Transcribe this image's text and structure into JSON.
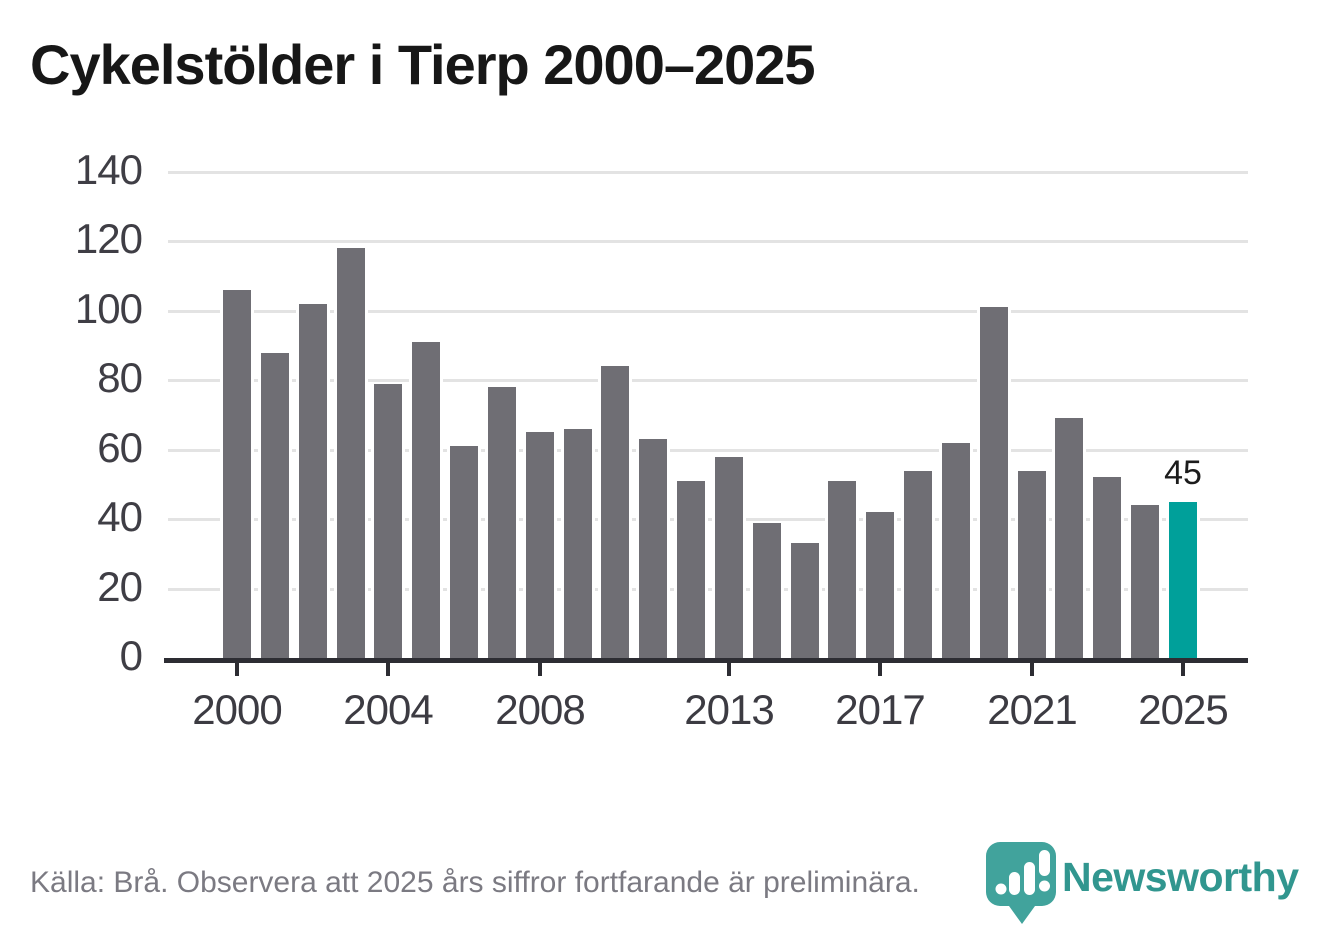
{
  "title": "Cykelstölder i Tierp 2000–2025",
  "footer": {
    "source_text": "Källa: Brå. Observera att 2025 års siffror fortfarande är preliminära.",
    "brand_name": "Newsworthy"
  },
  "colors": {
    "bar": "#6f6e74",
    "highlight_bar": "#00a09a",
    "gridline": "#e3e3e3",
    "axis": "#2d2d33",
    "brand_teal": "#41a39c",
    "brand_text_teal": "#31968f",
    "title_text": "#171717",
    "tick_text": "#3c3b42",
    "footer_text": "#7b7a82"
  },
  "chart_data": {
    "type": "bar",
    "title": "Cykelstölder i Tierp 2000–2025",
    "xlabel": "",
    "ylabel": "",
    "ylim": [
      0,
      140
    ],
    "grid": true,
    "y_ticks": [
      0,
      20,
      40,
      60,
      80,
      100,
      120,
      140
    ],
    "x_tick_years": [
      2000,
      2004,
      2008,
      2013,
      2017,
      2021,
      2025
    ],
    "categories": [
      2000,
      2001,
      2002,
      2003,
      2004,
      2005,
      2006,
      2007,
      2008,
      2009,
      2010,
      2011,
      2012,
      2013,
      2014,
      2015,
      2016,
      2017,
      2018,
      2019,
      2020,
      2021,
      2022,
      2023,
      2024,
      2025
    ],
    "values": [
      106,
      88,
      102,
      118,
      79,
      91,
      61,
      78,
      65,
      66,
      84,
      63,
      51,
      58,
      39,
      33,
      51,
      42,
      54,
      62,
      101,
      54,
      69,
      52,
      44,
      45
    ],
    "highlight_year": 2025,
    "highlight_label": "45"
  }
}
